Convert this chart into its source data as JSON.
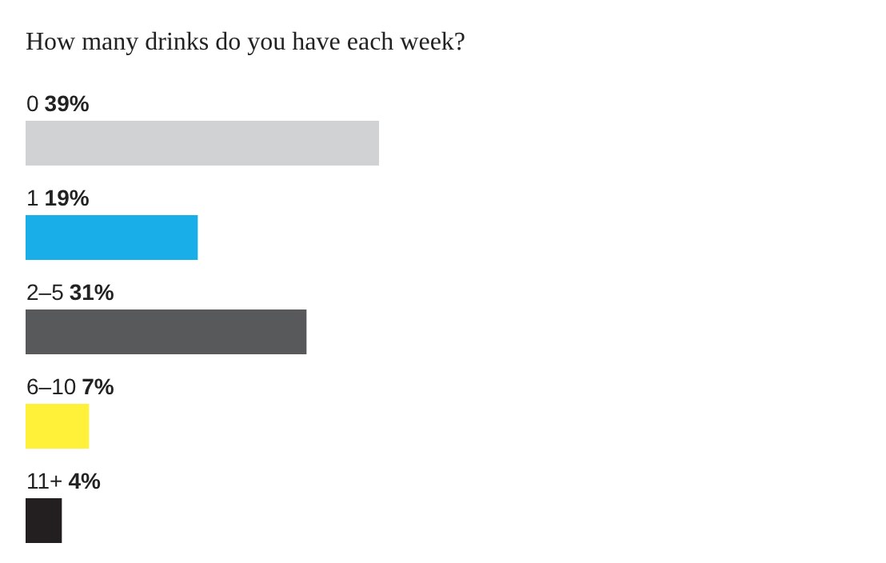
{
  "chart_data": {
    "type": "bar",
    "orientation": "horizontal",
    "title": "How many drinks do you have each week?",
    "categories": [
      "0",
      "1",
      "2–5",
      "6–10",
      "11+"
    ],
    "values": [
      39,
      19,
      31,
      7,
      4
    ],
    "value_labels": [
      "39%",
      "19%",
      "31%",
      "7%",
      "4%"
    ],
    "colors": [
      "#d1d2d4",
      "#1aaee8",
      "#58595b",
      "#fff03a",
      "#231f20"
    ],
    "legend": false
  }
}
